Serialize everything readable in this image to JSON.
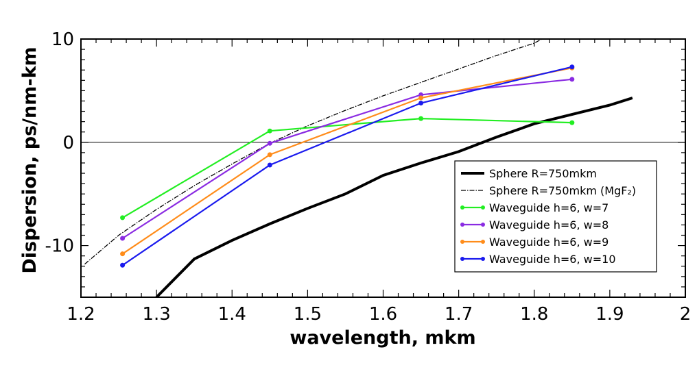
{
  "chart_data": {
    "type": "line",
    "title": "",
    "xlabel": "wavelength, mkm",
    "ylabel": "Dispersion, ps/nm-km",
    "xlim": [
      1.2,
      2.0
    ],
    "ylim": [
      -15,
      10
    ],
    "x_ticks": [
      "1.2",
      "1.3",
      "1.4",
      "1.5",
      "1.6",
      "1.7",
      "1.8",
      "1.9",
      "2"
    ],
    "y_ticks": [
      "-10",
      "0",
      "10"
    ],
    "legend_position": "center-right",
    "series": [
      {
        "name": "Sphere R=750mkm",
        "style": "thick-solid",
        "color": "#000000",
        "x": [
          1.3,
          1.35,
          1.4,
          1.45,
          1.5,
          1.55,
          1.6,
          1.65,
          1.7,
          1.75,
          1.8,
          1.85,
          1.9,
          1.93
        ],
        "y": [
          -15.0,
          -11.3,
          -9.5,
          -7.9,
          -6.4,
          -5.0,
          -3.2,
          -2.0,
          -0.9,
          0.5,
          1.8,
          2.7,
          3.6,
          4.3
        ]
      },
      {
        "name": "Sphere R=750mkm (MgF₂)",
        "style": "dash-dot",
        "color": "#000000",
        "x": [
          1.205,
          1.25,
          1.3,
          1.35,
          1.4,
          1.45,
          1.5,
          1.55,
          1.6,
          1.65,
          1.7,
          1.75,
          1.8,
          1.81
        ],
        "y": [
          -11.8,
          -9.0,
          -6.5,
          -4.2,
          -2.1,
          -0.1,
          1.6,
          3.1,
          4.5,
          5.8,
          7.1,
          8.4,
          9.6,
          10.0
        ]
      },
      {
        "name": "Waveguide h=6, w=7",
        "style": "marker-line",
        "color": "#22ee22",
        "x": [
          1.255,
          1.45,
          1.65,
          1.85
        ],
        "y": [
          -7.3,
          1.1,
          2.3,
          1.9
        ]
      },
      {
        "name": "Waveguide h=6, w=8",
        "style": "marker-line",
        "color": "#8a2be2",
        "x": [
          1.255,
          1.45,
          1.65,
          1.85
        ],
        "y": [
          -9.3,
          -0.1,
          4.6,
          6.1
        ]
      },
      {
        "name": "Waveguide h=6, w=9",
        "style": "marker-line",
        "color": "#ff8c1a",
        "x": [
          1.255,
          1.45,
          1.65,
          1.85
        ],
        "y": [
          -10.8,
          -1.2,
          4.3,
          7.2
        ]
      },
      {
        "name": "Waveguide h=6, w=10",
        "style": "marker-line",
        "color": "#1a1aee",
        "x": [
          1.255,
          1.45,
          1.65,
          1.85
        ],
        "y": [
          -11.9,
          -2.2,
          3.8,
          7.3
        ]
      }
    ]
  }
}
